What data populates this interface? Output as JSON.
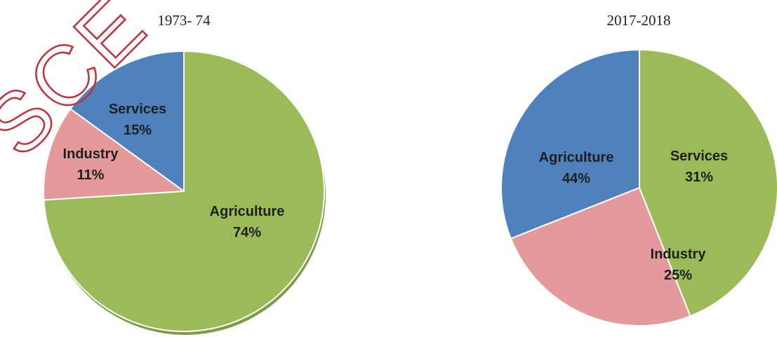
{
  "watermark": {
    "text": "SCE",
    "color": "#c0313a"
  },
  "chart_data": [
    {
      "type": "pie",
      "title": "1973- 74",
      "slices": [
        {
          "name": "Services",
          "value": 15,
          "label": "15%",
          "color": "#4f81bd"
        },
        {
          "name": "Industry",
          "value": 11,
          "label": "11%",
          "color": "#e49a9a"
        },
        {
          "name": "Agriculture",
          "value": 74,
          "label": "74%",
          "color": "#9bbb59"
        }
      ]
    },
    {
      "type": "pie",
      "title": "2017-2018",
      "slices": [
        {
          "name": "Services",
          "value": 31,
          "label": "31%",
          "color": "#4f81bd"
        },
        {
          "name": "Industry",
          "value": 25,
          "label": "25%",
          "color": "#e49a9a"
        },
        {
          "name": "Agriculture",
          "value": 44,
          "label": "44%",
          "color": "#9bbb59"
        }
      ]
    }
  ]
}
